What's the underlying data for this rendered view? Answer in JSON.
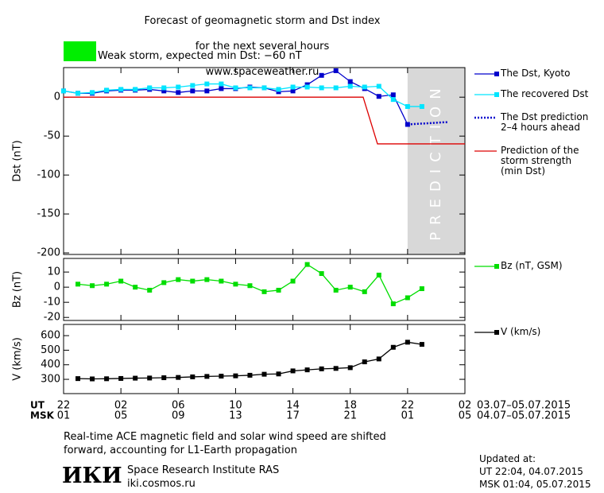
{
  "header": {
    "title_lines": [
      "Forecast of geomagnetic storm and Dst index",
      "for the next several hours",
      "www.spaceweather.ru"
    ],
    "storm_note": {
      "color": "#00ee00",
      "text": "Weak storm, expected min Dst: −60 nT"
    }
  },
  "chart_data": [
    {
      "type": "line",
      "ylabel": "Dst (nT)",
      "xlim": [
        0,
        28
      ],
      "ylim": [
        -202,
        38
      ],
      "yticks": [
        0,
        -50,
        -100,
        -150,
        -200
      ],
      "shade": {
        "xlim": [
          24,
          28
        ],
        "color": "#d8d8d8",
        "label": "PREDICTION"
      },
      "series": [
        {
          "name": "The Dst, Kyoto",
          "color": "#0000cc",
          "marker": "square",
          "dotted": false,
          "x": [
            0,
            1,
            2,
            3,
            4,
            5,
            6,
            7,
            8,
            9,
            10,
            11,
            12,
            13,
            14,
            15,
            16,
            17,
            18,
            19,
            20,
            21,
            22,
            23,
            24
          ],
          "values": [
            8,
            5,
            5,
            8,
            9,
            9,
            10,
            8,
            6,
            8,
            8,
            11,
            11,
            13,
            12,
            7,
            8,
            16,
            28,
            34,
            20,
            11,
            1,
            3,
            -35
          ]
        },
        {
          "name": "The recovered Dst",
          "color": "#00e5ff",
          "marker": "square",
          "dotted": false,
          "x": [
            0,
            1,
            2,
            3,
            4,
            5,
            6,
            7,
            8,
            9,
            10,
            11,
            12,
            13,
            14,
            15,
            16,
            17,
            18,
            19,
            20,
            21,
            22,
            23,
            24,
            25
          ],
          "values": [
            8,
            5,
            6,
            9,
            10,
            10,
            12,
            12,
            13,
            15,
            17,
            17,
            12,
            12,
            12,
            10,
            13,
            13,
            12,
            12,
            14,
            13,
            14,
            -3,
            -12,
            -12
          ]
        },
        {
          "name": "The Dst prediction\n2–4 hours ahead",
          "color": "#0000cc",
          "marker": "none",
          "dotted": true,
          "x": [
            24,
            26.8
          ],
          "values": [
            -35,
            -32
          ]
        },
        {
          "name": "Prediction of the\nstorm strength\n(min Dst)",
          "color": "#dd0000",
          "marker": "none",
          "dotted": false,
          "x": [
            0,
            20.9,
            21.9,
            28
          ],
          "values": [
            0,
            0,
            -60,
            -60
          ]
        }
      ]
    },
    {
      "type": "line",
      "ylabel": "Bz (nT)",
      "xlim": [
        0,
        28
      ],
      "ylim": [
        -22,
        19
      ],
      "yticks": [
        10,
        0,
        -10,
        -20
      ],
      "series": [
        {
          "name": "Bz (nT, GSM)",
          "color": "#00dd00",
          "marker": "square",
          "dotted": false,
          "x": [
            1,
            2,
            3,
            4,
            5,
            6,
            7,
            8,
            9,
            10,
            11,
            12,
            13,
            14,
            15,
            16,
            17,
            18,
            19,
            20,
            21,
            22,
            23,
            24,
            25
          ],
          "values": [
            2,
            1,
            2,
            4,
            0,
            -2,
            3,
            5,
            4,
            5,
            4,
            2,
            1,
            -3,
            -2,
            4,
            15,
            9,
            -2,
            0,
            -3,
            8,
            -11,
            -7,
            -1
          ]
        }
      ]
    },
    {
      "type": "line",
      "ylabel": "V (km/s)",
      "xlim": [
        0,
        28
      ],
      "ylim": [
        202,
        677
      ],
      "yticks": [
        300,
        400,
        500,
        600
      ],
      "series": [
        {
          "name": "V (km/s)",
          "color": "#000000",
          "marker": "square",
          "dotted": false,
          "x": [
            1,
            2,
            3,
            4,
            5,
            6,
            7,
            8,
            9,
            10,
            11,
            12,
            13,
            14,
            15,
            16,
            17,
            18,
            19,
            20,
            21,
            22,
            23,
            24,
            25
          ],
          "values": [
            305,
            303,
            304,
            306,
            308,
            309,
            311,
            313,
            317,
            320,
            322,
            324,
            328,
            335,
            337,
            358,
            365,
            372,
            375,
            380,
            420,
            440,
            520,
            555,
            540
          ]
        }
      ]
    }
  ],
  "x_axis": {
    "ut_label": "UT",
    "msk_label": "MSK",
    "xticks": [
      {
        "value": 0,
        "label": "22"
      },
      {
        "value": 4,
        "label": "02"
      },
      {
        "value": 8,
        "label": "06"
      },
      {
        "value": 12,
        "label": "10"
      },
      {
        "value": 16,
        "label": "14"
      },
      {
        "value": 20,
        "label": "18"
      },
      {
        "value": 24,
        "label": "22"
      },
      {
        "value": 28,
        "label": "02"
      }
    ],
    "xticks_msk": [
      {
        "value": 0,
        "label": "01"
      },
      {
        "value": 4,
        "label": "05"
      },
      {
        "value": 8,
        "label": "09"
      },
      {
        "value": 12,
        "label": "13"
      },
      {
        "value": 16,
        "label": "17"
      },
      {
        "value": 20,
        "label": "21"
      },
      {
        "value": 24,
        "label": "01"
      },
      {
        "value": 28,
        "label": "05"
      }
    ],
    "ut_dates": "03.07–05.07.2015",
    "msk_dates": "04.07–05.07.2015"
  },
  "footer": {
    "note": "Real-time ACE magnetic field and solar wind speed are shifted\nforward, accounting for L1-Earth propagation",
    "logo": "ИКИ",
    "institute": "Space Research Institute RAS",
    "site": "iki.cosmos.ru",
    "updated": "Updated at:\nUT   22:04, 04.07.2015\nMSK 01:04, 05.07.2015"
  }
}
